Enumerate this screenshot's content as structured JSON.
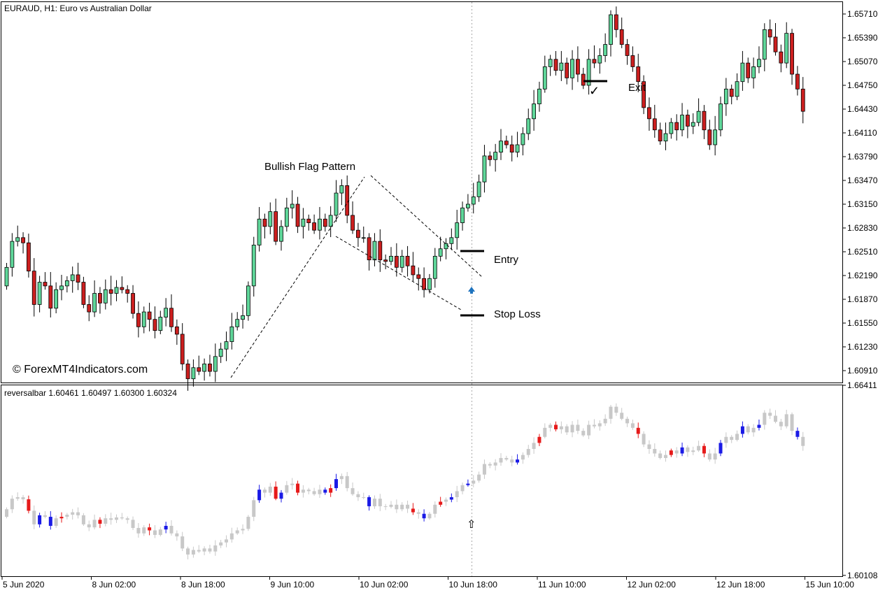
{
  "header": {
    "symbol_label": "EURAUD, H1:  Euro vs Australian Dollar",
    "indicator_label": "reversalbar 1.60461 1.60497 1.60300 1.60324"
  },
  "watermark": "© ForexMT4Indicators.com",
  "annotations": {
    "pattern": "Bullish Flag Pattern",
    "entry": "Entry",
    "stop_loss": "Stop Loss",
    "exit": "Exit",
    "exit_mark": "✓",
    "arrow_mark": "⇧"
  },
  "colors": {
    "bull": "#5fd79a",
    "bear": "#cc1f1f",
    "wick": "#000000",
    "rb_neutral": "#c8c8c8",
    "rb_bull": "#1a1ae6",
    "rb_bear": "#e61a1a",
    "signal_arrow": "#1e73be"
  },
  "chart_data": [
    {
      "type": "candlestick",
      "title": "EURAUD, H1:  Euro vs Australian Dollar",
      "ylim": [
        1.6075,
        1.6587
      ],
      "y_ticks": [
        "1.65710",
        "1.65390",
        "1.65070",
        "1.64750",
        "1.64430",
        "1.64110",
        "1.63790",
        "1.63470",
        "1.63150",
        "1.62830",
        "1.62510",
        "1.62190",
        "1.61870",
        "1.61550",
        "1.61230",
        "1.60910"
      ],
      "x_ticks": [
        "5 Jun 2020",
        "8 Jun 02:00",
        "8 Jun 18:00",
        "9 Jun 10:00",
        "10 Jun 02:00",
        "10 Jun 18:00",
        "11 Jun 10:00",
        "12 Jun 02:00",
        "12 Jun 18:00",
        "15 Jun 10:00"
      ],
      "closes": [
        1.623,
        1.6265,
        1.627,
        1.6263,
        1.6225,
        1.618,
        1.621,
        1.6205,
        1.6175,
        1.62,
        1.6205,
        1.6212,
        1.622,
        1.621,
        1.618,
        1.617,
        1.6195,
        1.6182,
        1.62,
        1.6195,
        1.6203,
        1.62,
        1.6195,
        1.6168,
        1.615,
        1.617,
        1.616,
        1.6145,
        1.6163,
        1.6175,
        1.615,
        1.614,
        1.61,
        1.608,
        1.6095,
        1.609,
        1.61,
        1.609,
        1.611,
        1.612,
        1.613,
        1.615,
        1.616,
        1.6165,
        1.6205,
        1.626,
        1.6295,
        1.6285,
        1.6305,
        1.6265,
        1.6285,
        1.631,
        1.6315,
        1.6285,
        1.6295,
        1.629,
        1.628,
        1.6295,
        1.6285,
        1.63,
        1.633,
        1.634,
        1.63,
        1.628,
        1.627,
        1.627,
        1.624,
        1.6265,
        1.624,
        1.6238,
        1.6245,
        1.623,
        1.6245,
        1.6232,
        1.622,
        1.6215,
        1.62,
        1.6215,
        1.6245,
        1.6255,
        1.6262,
        1.627,
        1.629,
        1.631,
        1.6315,
        1.6325,
        1.6345,
        1.638,
        1.6375,
        1.6385,
        1.64,
        1.6395,
        1.6385,
        1.6395,
        1.641,
        1.643,
        1.645,
        1.647,
        1.65,
        1.651,
        1.6495,
        1.6505,
        1.6485,
        1.651,
        1.649,
        1.6475,
        1.651,
        1.6505,
        1.6515,
        1.653,
        1.657,
        1.655,
        1.653,
        1.6515,
        1.65,
        1.648,
        1.6445,
        1.643,
        1.6415,
        1.64,
        1.641,
        1.6425,
        1.6415,
        1.6435,
        1.642,
        1.6425,
        1.644,
        1.6415,
        1.6395,
        1.6415,
        1.645,
        1.647,
        1.646,
        1.648,
        1.6505,
        1.6485,
        1.65,
        1.651,
        1.655,
        1.654,
        1.652,
        1.6505,
        1.6545,
        1.649,
        1.647,
        1.644
      ]
    },
    {
      "type": "candlestick",
      "title": "reversalbar 1.60461 1.60497 1.60300 1.60324",
      "ylim": [
        1.6008,
        1.6641
      ],
      "y_ticks": [
        "1.66411",
        "1.60108"
      ],
      "closes": [
        1.623,
        1.6265,
        1.627,
        1.6263,
        1.6225,
        1.618,
        1.621,
        1.6205,
        1.6175,
        1.62,
        1.6205,
        1.6212,
        1.622,
        1.621,
        1.618,
        1.617,
        1.6195,
        1.6182,
        1.62,
        1.6195,
        1.6203,
        1.62,
        1.6195,
        1.6168,
        1.615,
        1.617,
        1.616,
        1.6145,
        1.6163,
        1.6175,
        1.615,
        1.614,
        1.61,
        1.608,
        1.6095,
        1.609,
        1.61,
        1.609,
        1.611,
        1.612,
        1.613,
        1.615,
        1.616,
        1.6165,
        1.6205,
        1.626,
        1.6295,
        1.6285,
        1.6305,
        1.6265,
        1.6285,
        1.631,
        1.6315,
        1.6285,
        1.6295,
        1.629,
        1.628,
        1.6295,
        1.6285,
        1.63,
        1.633,
        1.634,
        1.63,
        1.628,
        1.627,
        1.627,
        1.624,
        1.6265,
        1.624,
        1.6238,
        1.6245,
        1.623,
        1.6245,
        1.6232,
        1.622,
        1.6215,
        1.62,
        1.6215,
        1.6245,
        1.6255,
        1.6262,
        1.627,
        1.629,
        1.631,
        1.6315,
        1.6325,
        1.6345,
        1.638,
        1.6375,
        1.6385,
        1.64,
        1.6395,
        1.6385,
        1.6395,
        1.641,
        1.643,
        1.645,
        1.647,
        1.65,
        1.651,
        1.6495,
        1.6505,
        1.6485,
        1.651,
        1.649,
        1.6475,
        1.651,
        1.6505,
        1.6515,
        1.653,
        1.657,
        1.655,
        1.653,
        1.6515,
        1.65,
        1.648,
        1.6445,
        1.643,
        1.6415,
        1.64,
        1.641,
        1.6425,
        1.6415,
        1.6435,
        1.642,
        1.6425,
        1.644,
        1.6415,
        1.6395,
        1.6415,
        1.645,
        1.647,
        1.646,
        1.648,
        1.6505,
        1.6485,
        1.65,
        1.651,
        1.655,
        1.654,
        1.652,
        1.6505,
        1.6545,
        1.649,
        1.647,
        1.644
      ],
      "bull_signal_bars": [
        6,
        8,
        29,
        46,
        50,
        58,
        60,
        66,
        76,
        81,
        84,
        93,
        123,
        130,
        134,
        137,
        144
      ],
      "bear_signal_bars": [
        4,
        10,
        17,
        26,
        49,
        53,
        59,
        74,
        79,
        97,
        100,
        115,
        121,
        127
      ]
    }
  ]
}
